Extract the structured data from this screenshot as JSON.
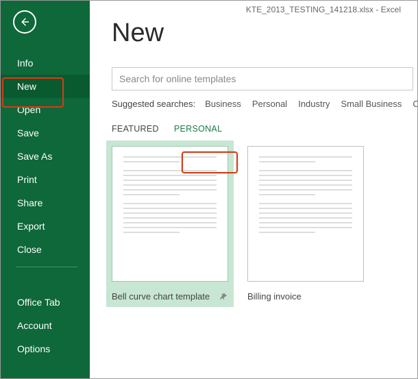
{
  "window": {
    "title": "KTE_2013_TESTING_141218.xlsx - Excel"
  },
  "colors": {
    "sidebar_bg": "#0e6839",
    "accent": "#1a7a44",
    "highlight": "#d23c1a",
    "selected_tpl_bg": "#c7e6d3"
  },
  "sidebar": {
    "items": [
      "Info",
      "New",
      "Open",
      "Save",
      "Save As",
      "Print",
      "Share",
      "Export",
      "Close"
    ],
    "selected_index": 1,
    "footer_items": [
      "Office Tab",
      "Account",
      "Options"
    ]
  },
  "page": {
    "title": "New",
    "search_placeholder": "Search for online templates",
    "suggested_label": "Suggested searches:",
    "suggested_links": [
      "Business",
      "Personal",
      "Industry",
      "Small Business",
      "Calcu"
    ],
    "tabs": [
      "FEATURED",
      "PERSONAL"
    ],
    "active_tab_index": 1,
    "templates": [
      {
        "name": "Bell curve chart template",
        "selected": true,
        "pinned": true
      },
      {
        "name": "Billing invoice",
        "selected": false,
        "pinned": false
      }
    ]
  }
}
